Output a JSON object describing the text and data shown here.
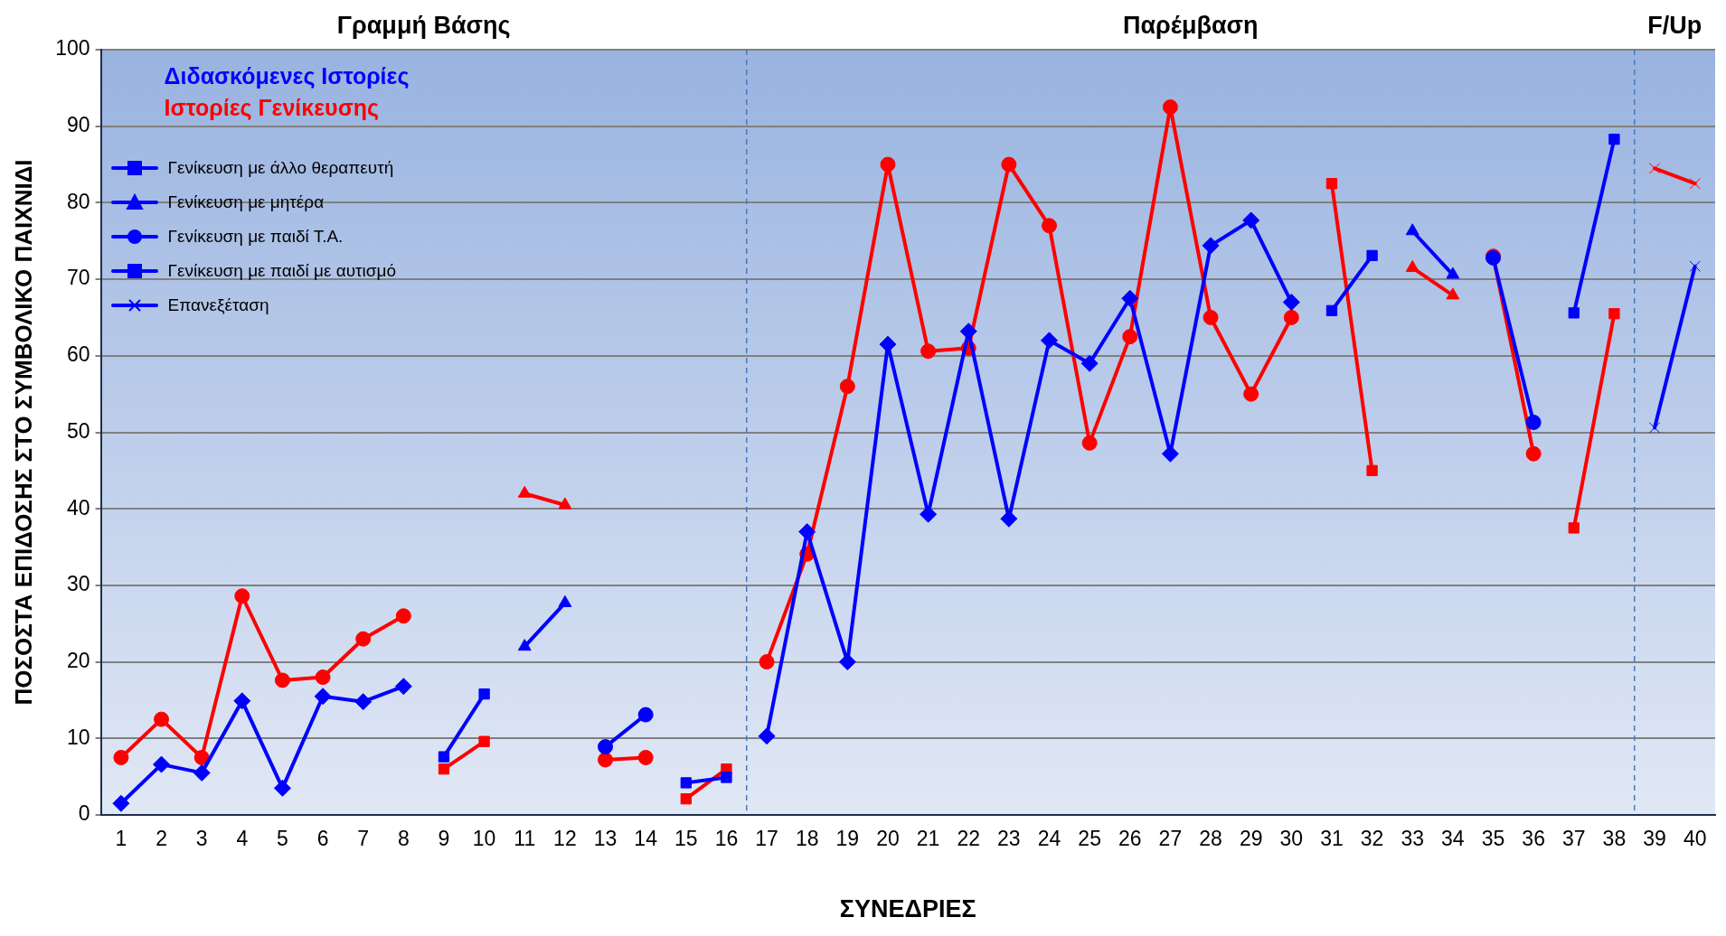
{
  "chart_data": {
    "type": "line",
    "xlabel": "ΣΥΝΕΔΡΙΕΣ",
    "ylabel": "ΠΟΣΟΣΤΑ ΕΠΙΔΟΣΗΣ ΣΤΟ ΣΥΜΒΟΛΙΚΟ ΠΑΙΧΝΙΔΙ",
    "annotations": [
      "Διδασκόμενες Ιστορίες",
      "Ιστορίες Γενίκευσης",
      "Γραμμή Βάσης",
      "Παρέμβαση",
      "F/Up"
    ],
    "x": [
      1,
      2,
      3,
      4,
      5,
      6,
      7,
      8,
      9,
      10,
      11,
      12,
      13,
      14,
      15,
      16,
      17,
      18,
      19,
      20,
      21,
      22,
      23,
      24,
      25,
      26,
      27,
      28,
      29,
      30,
      31,
      32,
      33,
      34,
      35,
      36,
      37,
      38,
      39,
      40
    ],
    "xlim": [
      0.5,
      40.5
    ],
    "xticks": [
      1,
      2,
      3,
      4,
      5,
      6,
      7,
      8,
      9,
      10,
      11,
      12,
      13,
      14,
      15,
      16,
      17,
      18,
      19,
      20,
      21,
      22,
      23,
      24,
      25,
      26,
      27,
      28,
      29,
      30,
      31,
      32,
      33,
      34,
      35,
      36,
      37,
      38,
      39,
      40
    ],
    "ylim": [
      0,
      100
    ],
    "yticks": [
      0,
      10,
      20,
      30,
      40,
      50,
      60,
      70,
      80,
      90,
      100
    ],
    "grid": "y",
    "legend": "top left",
    "line_style": "solid",
    "ref_lines": [
      {
        "axis": "x",
        "value": 16.5,
        "color": "#4a78b8",
        "line_style": "dashed"
      },
      {
        "axis": "x",
        "value": 38.5,
        "color": "#4a78b8",
        "line_style": "dashed"
      }
    ],
    "series": [
      {
        "color": "#0000ff",
        "marker": "diamond",
        "values": [
          1.5,
          6.6,
          5.5,
          14.9,
          3.5,
          15.5,
          14.8,
          16.8,
          null,
          null,
          null,
          null,
          null,
          null,
          null,
          null,
          10.3,
          37,
          20,
          61.5,
          39.3,
          63.2,
          38.7,
          62,
          59,
          67.5,
          47.2,
          74.4,
          77.7,
          67,
          null,
          null,
          null,
          null,
          null,
          null,
          null,
          null,
          null,
          null
        ]
      },
      {
        "color": "#ff0000",
        "marker": "circle",
        "values": [
          7.5,
          12.5,
          7.5,
          28.6,
          17.6,
          18,
          23,
          26,
          null,
          null,
          null,
          null,
          null,
          null,
          null,
          null,
          20,
          34.1,
          56,
          85,
          60.6,
          61,
          85,
          77,
          48.6,
          62.5,
          92.5,
          65,
          55,
          65,
          null,
          null,
          null,
          null,
          null,
          null,
          null,
          null,
          null,
          null
        ]
      },
      {
        "name": "Γενίκευση με άλλο θεραπευτή",
        "color": "#0000ff",
        "marker": "square",
        "values": [
          null,
          null,
          null,
          null,
          null,
          null,
          null,
          null,
          7.6,
          15.8,
          null,
          null,
          null,
          null,
          null,
          null,
          null,
          null,
          null,
          null,
          null,
          null,
          null,
          null,
          null,
          null,
          null,
          null,
          null,
          null,
          65.9,
          73.1,
          null,
          null,
          null,
          null,
          null,
          null,
          null,
          null
        ]
      },
      {
        "color": "#ff0000",
        "marker": "square",
        "values": [
          null,
          null,
          null,
          null,
          null,
          null,
          null,
          null,
          6,
          9.6,
          null,
          null,
          null,
          null,
          null,
          null,
          null,
          null,
          null,
          null,
          null,
          null,
          null,
          null,
          null,
          null,
          null,
          null,
          null,
          null,
          82.5,
          45,
          null,
          null,
          null,
          null,
          null,
          null,
          null,
          null
        ]
      },
      {
        "name": "Γενίκευση με μητέρα",
        "color": "#0000ff",
        "marker": "triangle",
        "values": [
          null,
          null,
          null,
          null,
          null,
          null,
          null,
          null,
          null,
          null,
          22,
          27.7,
          null,
          null,
          null,
          null,
          null,
          null,
          null,
          null,
          null,
          null,
          null,
          null,
          null,
          null,
          null,
          null,
          null,
          null,
          null,
          null,
          76.3,
          70.6,
          null,
          null,
          null,
          null,
          null,
          null
        ]
      },
      {
        "color": "#ff0000",
        "marker": "triangle",
        "values": [
          null,
          null,
          null,
          null,
          null,
          null,
          null,
          null,
          null,
          null,
          42,
          40.5,
          null,
          null,
          null,
          null,
          null,
          null,
          null,
          null,
          null,
          null,
          null,
          null,
          null,
          null,
          null,
          null,
          null,
          null,
          null,
          null,
          71.5,
          67.9,
          null,
          null,
          null,
          null,
          null,
          null
        ]
      },
      {
        "name": "Γενίκευση με παιδί Τ.Α.",
        "color": "#0000ff",
        "marker": "circle",
        "values": [
          null,
          null,
          null,
          null,
          null,
          null,
          null,
          null,
          null,
          null,
          null,
          null,
          8.9,
          13.1,
          null,
          null,
          null,
          null,
          null,
          null,
          null,
          null,
          null,
          null,
          null,
          null,
          null,
          null,
          null,
          null,
          null,
          null,
          null,
          null,
          72.8,
          51.3,
          null,
          null,
          null,
          null
        ]
      },
      {
        "color": "#ff0000",
        "marker": "circle",
        "values": [
          null,
          null,
          null,
          null,
          null,
          null,
          null,
          null,
          null,
          null,
          null,
          null,
          7.2,
          7.5,
          null,
          null,
          null,
          null,
          null,
          null,
          null,
          null,
          null,
          null,
          null,
          null,
          null,
          null,
          null,
          null,
          null,
          null,
          null,
          null,
          73,
          47.2,
          null,
          null,
          null,
          null
        ]
      },
      {
        "name": "Γενίκευση με παιδί με αυτισμό",
        "color": "#0000ff",
        "marker": "square",
        "values": [
          null,
          null,
          null,
          null,
          null,
          null,
          null,
          null,
          null,
          null,
          null,
          null,
          null,
          null,
          4.2,
          4.9,
          null,
          null,
          null,
          null,
          null,
          null,
          null,
          null,
          null,
          null,
          null,
          null,
          null,
          null,
          null,
          null,
          null,
          null,
          null,
          null,
          65.6,
          88.3,
          null,
          null
        ]
      },
      {
        "color": "#ff0000",
        "marker": "square",
        "values": [
          null,
          null,
          null,
          null,
          null,
          null,
          null,
          null,
          null,
          null,
          null,
          null,
          null,
          null,
          2.1,
          6,
          null,
          null,
          null,
          null,
          null,
          null,
          null,
          null,
          null,
          null,
          null,
          null,
          null,
          null,
          null,
          null,
          null,
          null,
          null,
          null,
          37.5,
          65.5,
          null,
          null
        ]
      },
      {
        "name": "Επανεξέταση",
        "color": "#0000ff",
        "marker": "cross",
        "values": [
          null,
          null,
          null,
          null,
          null,
          null,
          null,
          null,
          null,
          null,
          null,
          null,
          null,
          null,
          null,
          null,
          null,
          null,
          null,
          null,
          null,
          null,
          null,
          null,
          null,
          null,
          null,
          null,
          null,
          null,
          null,
          null,
          null,
          null,
          null,
          null,
          null,
          null,
          50.6,
          71.7
        ]
      },
      {
        "color": "#ff0000",
        "marker": "cross",
        "values": [
          null,
          null,
          null,
          null,
          null,
          null,
          null,
          null,
          null,
          null,
          null,
          null,
          null,
          null,
          null,
          null,
          null,
          null,
          null,
          null,
          null,
          null,
          null,
          null,
          null,
          null,
          null,
          null,
          null,
          null,
          null,
          null,
          null,
          null,
          null,
          null,
          null,
          null,
          84.5,
          82.5
        ]
      }
    ]
  }
}
